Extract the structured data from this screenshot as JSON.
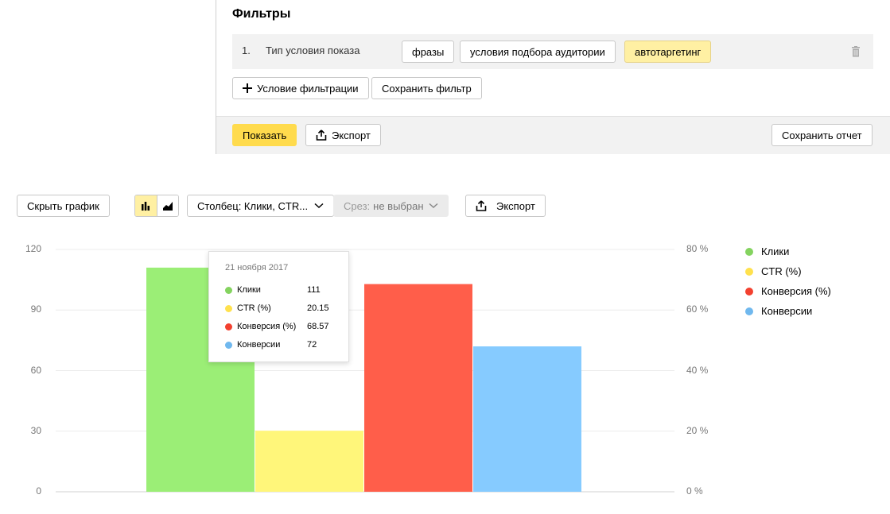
{
  "filters": {
    "title": "Фильтры",
    "row": {
      "number": "1.",
      "label": "Тип условия показа",
      "options": [
        "фразы",
        "условия подбора аудитории",
        "автотаргетинг"
      ]
    },
    "add_condition_label": "Условие фильтрации",
    "save_filter_label": "Сохранить фильтр"
  },
  "footer": {
    "show_label": "Показать",
    "export_label": "Экспорт",
    "save_report_label": "Сохранить отчет"
  },
  "toolbar": {
    "hide_chart_label": "Скрыть график",
    "column_select": "Столбец: Клики, CTR...",
    "slice_prefix": "Срез:",
    "slice_value": "не выбран",
    "export_label": "Экспорт"
  },
  "tooltip": {
    "date": "21 ноября 2017",
    "rows": [
      {
        "label": "Клики",
        "value": "111",
        "color": "#84d35f"
      },
      {
        "label": "CTR (%)",
        "value": "20.15",
        "color": "#ffe14d"
      },
      {
        "label": "Конверсия (%)",
        "value": "68.57",
        "color": "#f3412f"
      },
      {
        "label": "Конверсии",
        "value": "72",
        "color": "#70b8ee"
      }
    ]
  },
  "chart_data": {
    "type": "bar",
    "categories": [
      "21 ноября 2017"
    ],
    "series": [
      {
        "name": "Клики",
        "values": [
          111
        ],
        "axis": "left",
        "color": "#9bee76"
      },
      {
        "name": "CTR (%)",
        "values": [
          20.15
        ],
        "axis": "right",
        "color": "#fff67a"
      },
      {
        "name": "Конверсия (%)",
        "values": [
          68.57
        ],
        "axis": "right",
        "color": "#ff5e4a"
      },
      {
        "name": "Конверсии",
        "values": [
          72
        ],
        "axis": "left",
        "color": "#86cbff"
      }
    ],
    "yTicksLeft": [
      "120",
      "90",
      "60",
      "30",
      "0"
    ],
    "yTicksRight": [
      "80 %",
      "60 %",
      "40 %",
      "20 %",
      "0 %"
    ],
    "ylimLeft": [
      0,
      120
    ],
    "ylimRight": [
      0,
      80
    ],
    "legend": [
      {
        "name": "Клики",
        "color": "#84d35f"
      },
      {
        "name": "CTR (%)",
        "color": "#ffe14d"
      },
      {
        "name": "Конверсия (%)",
        "color": "#f3412f"
      },
      {
        "name": "Конверсии",
        "color": "#70b8ee"
      }
    ],
    "grid": true,
    "legend_position": "right"
  }
}
